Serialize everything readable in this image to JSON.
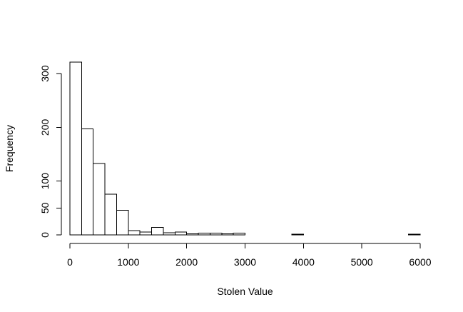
{
  "chart_data": {
    "type": "bar",
    "title": "",
    "xlabel": "Stolen Value",
    "ylabel": "Frequency",
    "xlim": [
      0,
      6000
    ],
    "ylim": [
      0,
      320
    ],
    "bin_width": 200,
    "x_ticks": [
      0,
      1000,
      2000,
      3000,
      4000,
      5000,
      6000
    ],
    "y_ticks": [
      0,
      50,
      100,
      200,
      300
    ],
    "bins": [
      {
        "start": 0,
        "end": 200,
        "count": 321
      },
      {
        "start": 200,
        "end": 400,
        "count": 197
      },
      {
        "start": 400,
        "end": 600,
        "count": 133
      },
      {
        "start": 600,
        "end": 800,
        "count": 76
      },
      {
        "start": 800,
        "end": 1000,
        "count": 46
      },
      {
        "start": 1000,
        "end": 1200,
        "count": 8
      },
      {
        "start": 1200,
        "end": 1400,
        "count": 5
      },
      {
        "start": 1400,
        "end": 1600,
        "count": 14
      },
      {
        "start": 1600,
        "end": 1800,
        "count": 4
      },
      {
        "start": 1800,
        "end": 2000,
        "count": 5
      },
      {
        "start": 2000,
        "end": 2200,
        "count": 2
      },
      {
        "start": 2200,
        "end": 2400,
        "count": 3
      },
      {
        "start": 2400,
        "end": 2600,
        "count": 3
      },
      {
        "start": 2600,
        "end": 2800,
        "count": 2
      },
      {
        "start": 2800,
        "end": 3000,
        "count": 3
      },
      {
        "start": 3000,
        "end": 3200,
        "count": 0
      },
      {
        "start": 3200,
        "end": 3400,
        "count": 0
      },
      {
        "start": 3400,
        "end": 3600,
        "count": 0
      },
      {
        "start": 3600,
        "end": 3800,
        "count": 0
      },
      {
        "start": 3800,
        "end": 4000,
        "count": 1
      },
      {
        "start": 4000,
        "end": 4200,
        "count": 0
      },
      {
        "start": 4200,
        "end": 4400,
        "count": 0
      },
      {
        "start": 4400,
        "end": 4600,
        "count": 0
      },
      {
        "start": 4600,
        "end": 4800,
        "count": 0
      },
      {
        "start": 4800,
        "end": 5000,
        "count": 0
      },
      {
        "start": 5000,
        "end": 5200,
        "count": 0
      },
      {
        "start": 5200,
        "end": 5400,
        "count": 0
      },
      {
        "start": 5400,
        "end": 5600,
        "count": 0
      },
      {
        "start": 5600,
        "end": 5800,
        "count": 0
      },
      {
        "start": 5800,
        "end": 6000,
        "count": 1
      }
    ],
    "grid": false,
    "legend": "none"
  }
}
